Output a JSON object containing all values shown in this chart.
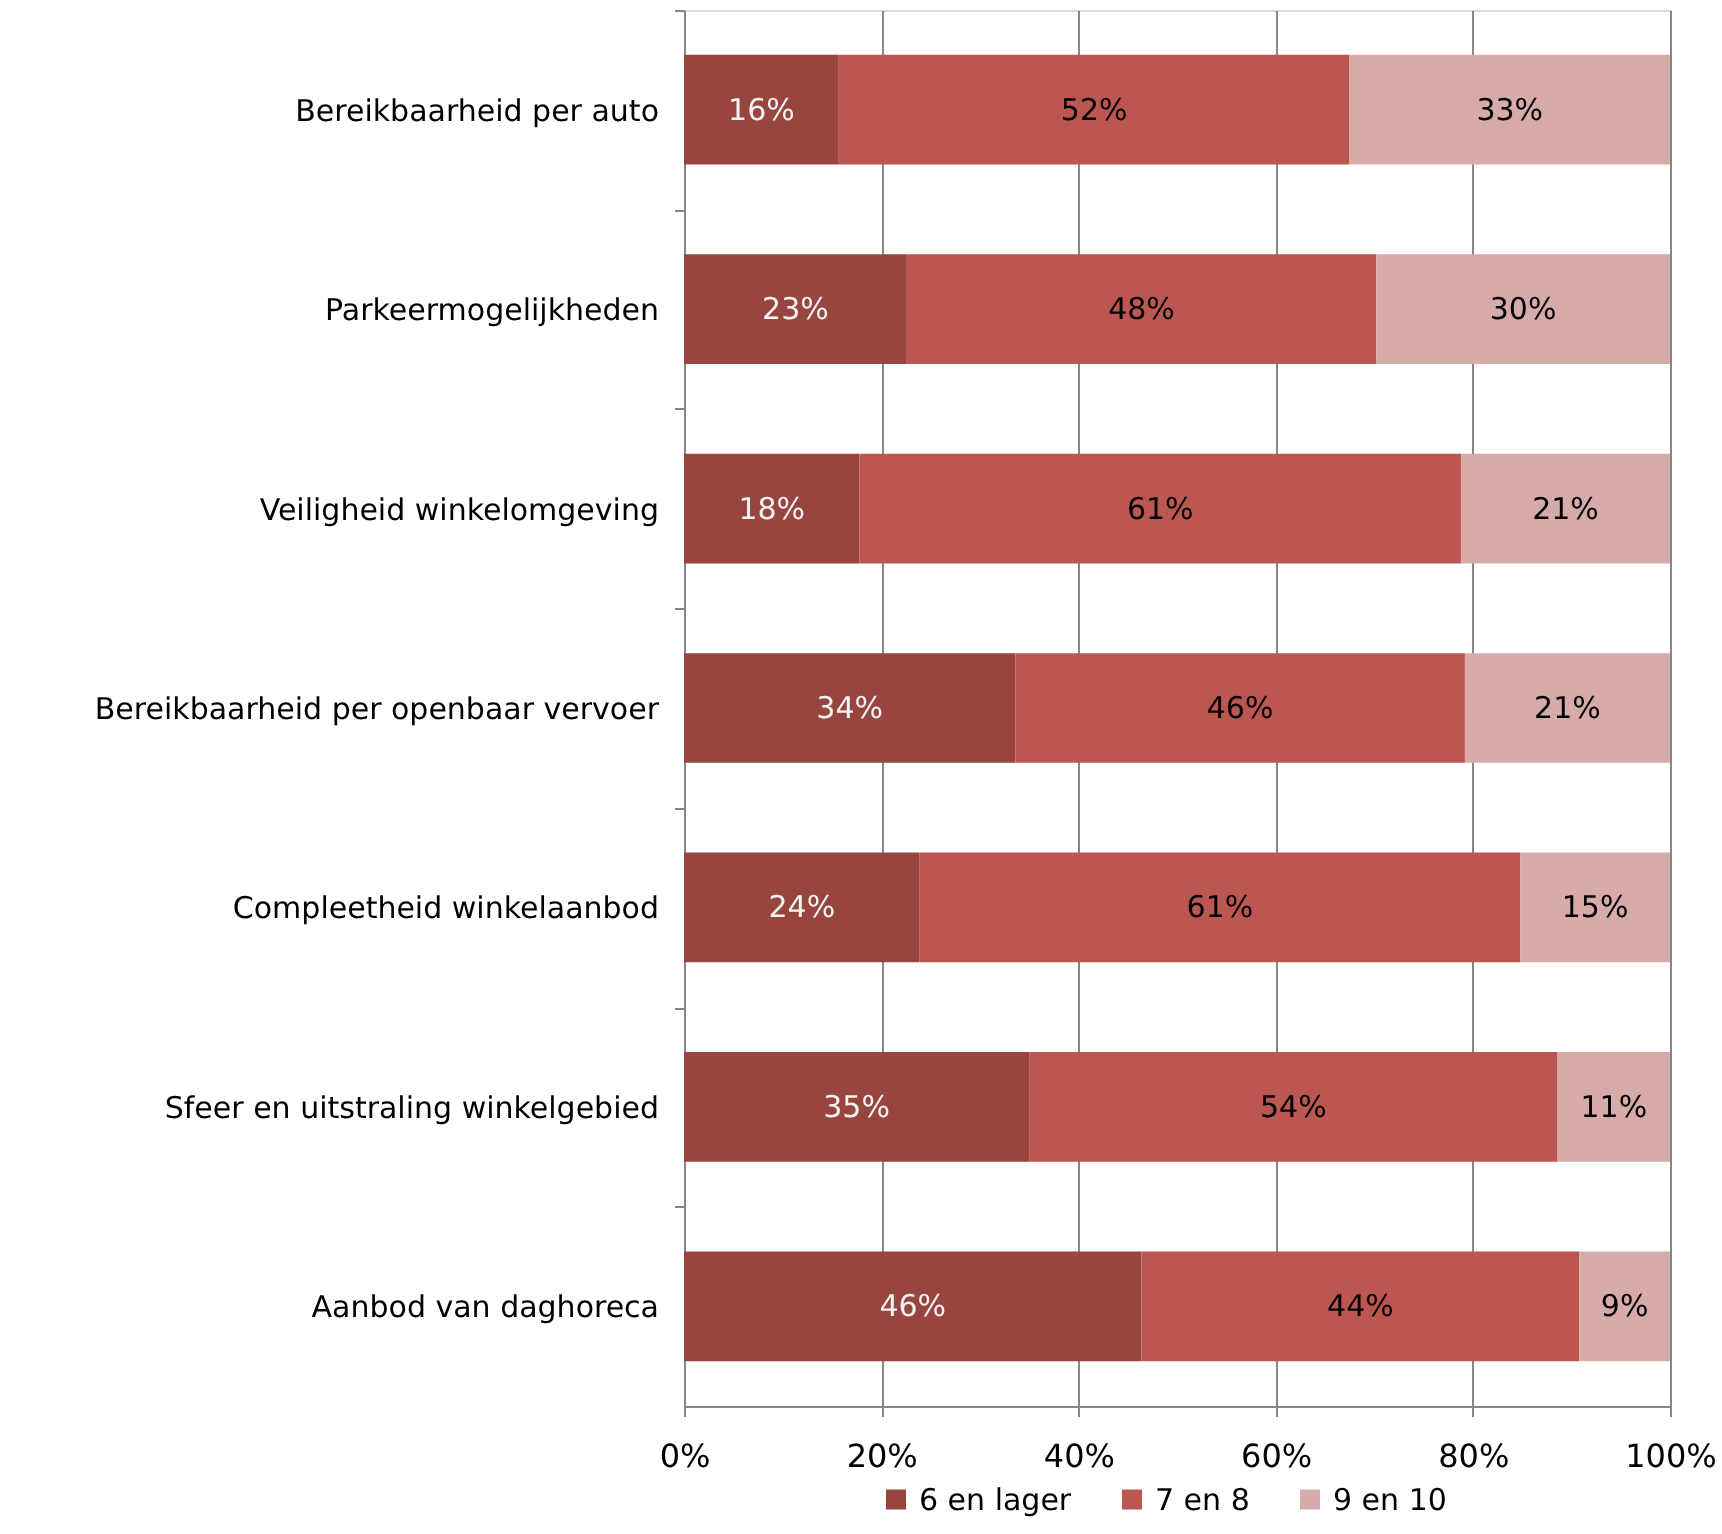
{
  "chart_data": {
    "type": "bar",
    "orientation": "horizontal",
    "stacked": true,
    "categories": [
      "Bereikbaarheid per auto",
      "Parkeermogelijkheden",
      "Veiligheid winkelomgeving",
      "Bereikbaarheid per openbaar vervoer",
      "Compleetheid winkelaanbod",
      "Sfeer en uitstraling winkelgebied",
      "Aanbod van daghoreca"
    ],
    "series": [
      {
        "name": "6 en lager",
        "color": "#984540",
        "values": [
          15.7,
          22.6,
          17.8,
          33.6,
          23.9,
          35.0,
          46.4
        ],
        "value_labels": [
          "16%",
          "23%",
          "18%",
          "34%",
          "24%",
          "35%",
          "46%"
        ]
      },
      {
        "name": "7 en 8",
        "color": "#bb5750",
        "values": [
          51.8,
          47.6,
          61.0,
          45.6,
          60.9,
          53.6,
          44.4
        ],
        "value_labels": [
          "52%",
          "48%",
          "61%",
          "46%",
          "61%",
          "54%",
          "44%"
        ]
      },
      {
        "name": "9 en 10",
        "color": "#d6abaa",
        "values": [
          32.5,
          29.8,
          21.2,
          20.8,
          15.2,
          11.4,
          9.2
        ],
        "value_labels": [
          "33%",
          "30%",
          "21%",
          "21%",
          "15%",
          "11%",
          "9%"
        ]
      }
    ],
    "xlim": [
      0,
      100
    ],
    "xticks": [
      {
        "value": 0,
        "label": "0%"
      },
      {
        "value": 20,
        "label": "20%"
      },
      {
        "value": 40,
        "label": "40%"
      },
      {
        "value": 60,
        "label": "60%"
      },
      {
        "value": 80,
        "label": "80%"
      },
      {
        "value": 100,
        "label": "100%"
      }
    ],
    "grid": "x",
    "legend": "bottom"
  }
}
